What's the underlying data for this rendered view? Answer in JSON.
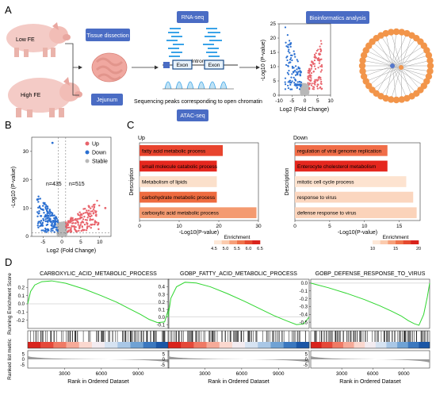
{
  "panels": {
    "a": "A",
    "b": "B",
    "c": "C",
    "d": "D"
  },
  "panel_a": {
    "pig_low_label": "Low FE",
    "pig_high_label": "High FE",
    "tissue_dissection": "Tissue dissection",
    "jejunum": "Jejunum",
    "rna_seq": "RNA-seq",
    "atac_seq": "ATAC-seq",
    "exon1": "Exon",
    "intron": "Intron",
    "exon2": "Exon",
    "peaks_caption": "Sequencing peaks corresponding to open chromatin",
    "bioinformatics": "Bioinformatics analysis",
    "mini_volcano": {
      "ylabel": "-Log10 (P-value)",
      "xlabel": "Log2 (Fold Change)",
      "xticks": [
        "-10",
        "-5",
        "0",
        "5",
        "10"
      ],
      "yticks": [
        "0",
        "5",
        "10",
        "15",
        "20",
        "25"
      ],
      "xlim": [
        -10,
        10
      ],
      "ylim": [
        0,
        25
      ]
    },
    "network_node_count": 40
  },
  "panel_b": {
    "legend": [
      {
        "label": "Up",
        "color": "#e8636b"
      },
      {
        "label": "Down",
        "color": "#2a6fd1"
      },
      {
        "label": "Stable",
        "color": "#b8b8b8"
      }
    ],
    "n_down": "n=435",
    "n_up": "n=515",
    "ylabel": "-Log10 (P-value)",
    "xlabel": "Log2 (Fold Change)",
    "xticks": [
      "-5",
      "0",
      "5",
      "10"
    ],
    "yticks": [
      "0",
      "10",
      "20",
      "30"
    ],
    "xlim": [
      -8,
      13
    ],
    "ylim": [
      0,
      35
    ]
  },
  "panel_c": {
    "up": {
      "title": "Up",
      "ylabel": "Description",
      "xlabel": "-Log10(P-value)",
      "xticks": [
        "0",
        "10",
        "20",
        "30"
      ],
      "xlim": [
        0,
        30
      ],
      "legend_title": "Enrichment",
      "legend_ticks": [
        "4.5",
        "5.0",
        "5.5",
        "6.0",
        "6.5"
      ],
      "terms": [
        {
          "label": "fatty acid metabolic process",
          "value": 21,
          "color": "#e8442e"
        },
        {
          "label": "small molecule catabolic process",
          "value": 19.5,
          "color": "#e5271e"
        },
        {
          "label": "Metabolism of lipids",
          "value": 19.5,
          "color": "#fbe0cb"
        },
        {
          "label": "carbohydrate metabolic process",
          "value": 19.5,
          "color": "#ee6b3f"
        },
        {
          "label": "carboxylic acid metabolic process",
          "value": 29.5,
          "color": "#f49a70"
        }
      ]
    },
    "down": {
      "title": "Down",
      "ylabel": "Description",
      "xlabel": "-Log10(P-value)",
      "xticks": [
        "0",
        "5",
        "10",
        "15"
      ],
      "xlim": [
        0,
        18
      ],
      "legend_title": "Enrichment",
      "legend_ticks": [
        "10",
        "15",
        "20"
      ],
      "terms": [
        {
          "label": "regulation of viral genome replication",
          "value": 13.3,
          "color": "#f06d48"
        },
        {
          "label": "Enterocyte cholesterol metabolism",
          "value": 13.3,
          "color": "#e5271e"
        },
        {
          "label": "mitotic cell cycle process",
          "value": 16,
          "color": "#fde3d0"
        },
        {
          "label": "response to virus",
          "value": 17,
          "color": "#fbd6bf"
        },
        {
          "label": "defense response to virus",
          "value": 17.5,
          "color": "#fbd3ba"
        }
      ]
    }
  },
  "panel_d": {
    "ylabel_top": "Running Enrichment Score",
    "ylabel_bottom": "Ranked list metric",
    "xlabel": "Rank in Ordered Dataset",
    "gsea": [
      {
        "title": "CARBOXYLIC_ACID_METABOLIC_PROCESS",
        "yticks": [
          "0.2",
          "0.1",
          "0.0",
          "-0.1",
          "-0.2"
        ],
        "es_points": [
          [
            0,
            0
          ],
          [
            0.02,
            0.15
          ],
          [
            0.05,
            0.23
          ],
          [
            0.1,
            0.27
          ],
          [
            0.17,
            0.28
          ],
          [
            0.27,
            0.25
          ],
          [
            0.4,
            0.18
          ],
          [
            0.52,
            0.1
          ],
          [
            0.63,
            0.02
          ],
          [
            0.72,
            -0.06
          ],
          [
            0.8,
            -0.13
          ],
          [
            0.86,
            -0.19
          ],
          [
            0.92,
            -0.23
          ],
          [
            0.97,
            -0.22
          ],
          [
            1.0,
            -0.05
          ]
        ],
        "ylim": [
          -0.3,
          0.3
        ]
      },
      {
        "title": "GOBP_FATTY_ACID_METABOLIC_PROCESS",
        "yticks": [
          "0.4",
          "0.3",
          "0.2",
          "0.1",
          "0.0",
          "-0.1"
        ],
        "es_points": [
          [
            0,
            0
          ],
          [
            0.02,
            0.25
          ],
          [
            0.06,
            0.4
          ],
          [
            0.12,
            0.46
          ],
          [
            0.2,
            0.45
          ],
          [
            0.3,
            0.4
          ],
          [
            0.42,
            0.31
          ],
          [
            0.54,
            0.21
          ],
          [
            0.65,
            0.11
          ],
          [
            0.75,
            0.02
          ],
          [
            0.84,
            -0.05
          ],
          [
            0.91,
            -0.1
          ],
          [
            0.96,
            -0.09
          ],
          [
            1.0,
            0.0
          ]
        ],
        "ylim": [
          -0.15,
          0.5
        ]
      },
      {
        "title": "GOBP_DEFENSE_RESPONSE_TO_VIRUS",
        "yticks": [
          "0.0",
          "-0.1",
          "-0.2",
          "-0.3",
          "-0.4",
          "-0.5"
        ],
        "es_points": [
          [
            0,
            0
          ],
          [
            0.05,
            -0.02
          ],
          [
            0.15,
            -0.06
          ],
          [
            0.3,
            -0.13
          ],
          [
            0.45,
            -0.21
          ],
          [
            0.58,
            -0.29
          ],
          [
            0.68,
            -0.36
          ],
          [
            0.76,
            -0.42
          ],
          [
            0.82,
            -0.48
          ],
          [
            0.87,
            -0.52
          ],
          [
            0.91,
            -0.54
          ],
          [
            0.95,
            -0.4
          ],
          [
            0.98,
            -0.18
          ],
          [
            1.0,
            0.0
          ]
        ],
        "ylim": [
          -0.58,
          0.05
        ]
      }
    ],
    "metric_yticks": [
      "5",
      "0",
      "-5"
    ],
    "xticks": [
      "3000",
      "6000",
      "9000"
    ],
    "xlim": [
      0,
      11500
    ]
  },
  "colors": {
    "blue_box": "#4a6cc4",
    "up": "#e8636b",
    "down": "#2a6fd1",
    "stable": "#b8b8b8",
    "gsea_line": "#2fd62f",
    "network_node": "#f2954a"
  }
}
